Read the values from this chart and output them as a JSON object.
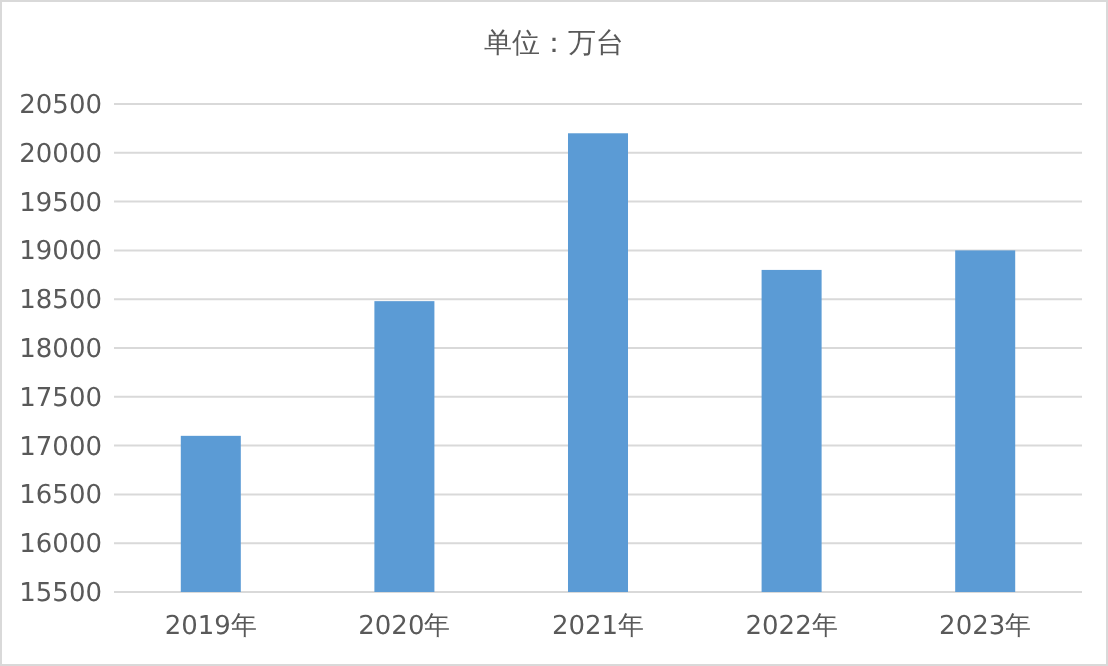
{
  "chart_data": {
    "type": "bar",
    "title": "单位：万台",
    "categories": [
      "2019年",
      "2020年",
      "2021年",
      "2022年",
      "2023年"
    ],
    "values": [
      17100,
      18480,
      20200,
      18800,
      19000
    ],
    "color": "#5b9bd5",
    "ylim": [
      15500,
      20500
    ],
    "yticks": [
      15500,
      16000,
      16500,
      17000,
      17500,
      18000,
      18500,
      19000,
      19500,
      20000,
      20500
    ],
    "grid": "y"
  }
}
